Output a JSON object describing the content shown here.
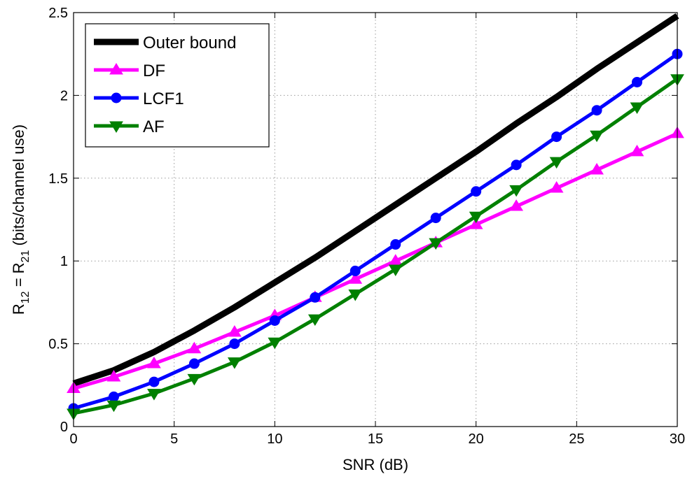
{
  "chart_data": {
    "type": "line",
    "title": "",
    "xlabel": "SNR (dB)",
    "ylabel": {
      "prefix": "R",
      "sub1": "12",
      "mid": " = R",
      "sub2": "21",
      "suffix": "  (bits/channel use)"
    },
    "xlim": [
      0,
      30
    ],
    "ylim": [
      0,
      2.5
    ],
    "xticks": [
      "0",
      "5",
      "10",
      "15",
      "20",
      "25",
      "30"
    ],
    "yticks": [
      "0",
      "0.5",
      "1",
      "1.5",
      "2",
      "2.5"
    ],
    "grid": true,
    "legend_position": "top-left",
    "series": [
      {
        "name": "Outer bound",
        "color": "#000000",
        "marker": "none",
        "x": [
          0,
          2,
          4,
          6,
          8,
          10,
          12,
          14,
          16,
          18,
          20,
          22,
          24,
          26,
          28,
          30
        ],
        "y": [
          0.26,
          0.34,
          0.45,
          0.58,
          0.72,
          0.87,
          1.02,
          1.18,
          1.34,
          1.5,
          1.66,
          1.83,
          1.99,
          2.16,
          2.32,
          2.48
        ]
      },
      {
        "name": "DF",
        "color": "#ff00ff",
        "marker": "triangle-up",
        "x": [
          0,
          2,
          4,
          6,
          8,
          10,
          12,
          14,
          16,
          18,
          20,
          22,
          24,
          26,
          28,
          30
        ],
        "y": [
          0.23,
          0.3,
          0.38,
          0.47,
          0.57,
          0.67,
          0.78,
          0.89,
          1.0,
          1.11,
          1.22,
          1.33,
          1.44,
          1.55,
          1.66,
          1.77
        ]
      },
      {
        "name": "LCF1",
        "color": "#0000ff",
        "marker": "circle",
        "x": [
          0,
          2,
          4,
          6,
          8,
          10,
          12,
          14,
          16,
          18,
          20,
          22,
          24,
          26,
          28,
          30
        ],
        "y": [
          0.11,
          0.18,
          0.27,
          0.38,
          0.5,
          0.64,
          0.78,
          0.94,
          1.1,
          1.26,
          1.42,
          1.58,
          1.75,
          1.91,
          2.08,
          2.25
        ]
      },
      {
        "name": "AF",
        "color": "#008000",
        "marker": "triangle-down",
        "x": [
          0,
          2,
          4,
          6,
          8,
          10,
          12,
          14,
          16,
          18,
          20,
          22,
          24,
          26,
          28,
          30
        ],
        "y": [
          0.08,
          0.13,
          0.2,
          0.29,
          0.39,
          0.51,
          0.65,
          0.8,
          0.95,
          1.11,
          1.27,
          1.43,
          1.6,
          1.76,
          1.93,
          2.1
        ]
      }
    ]
  }
}
